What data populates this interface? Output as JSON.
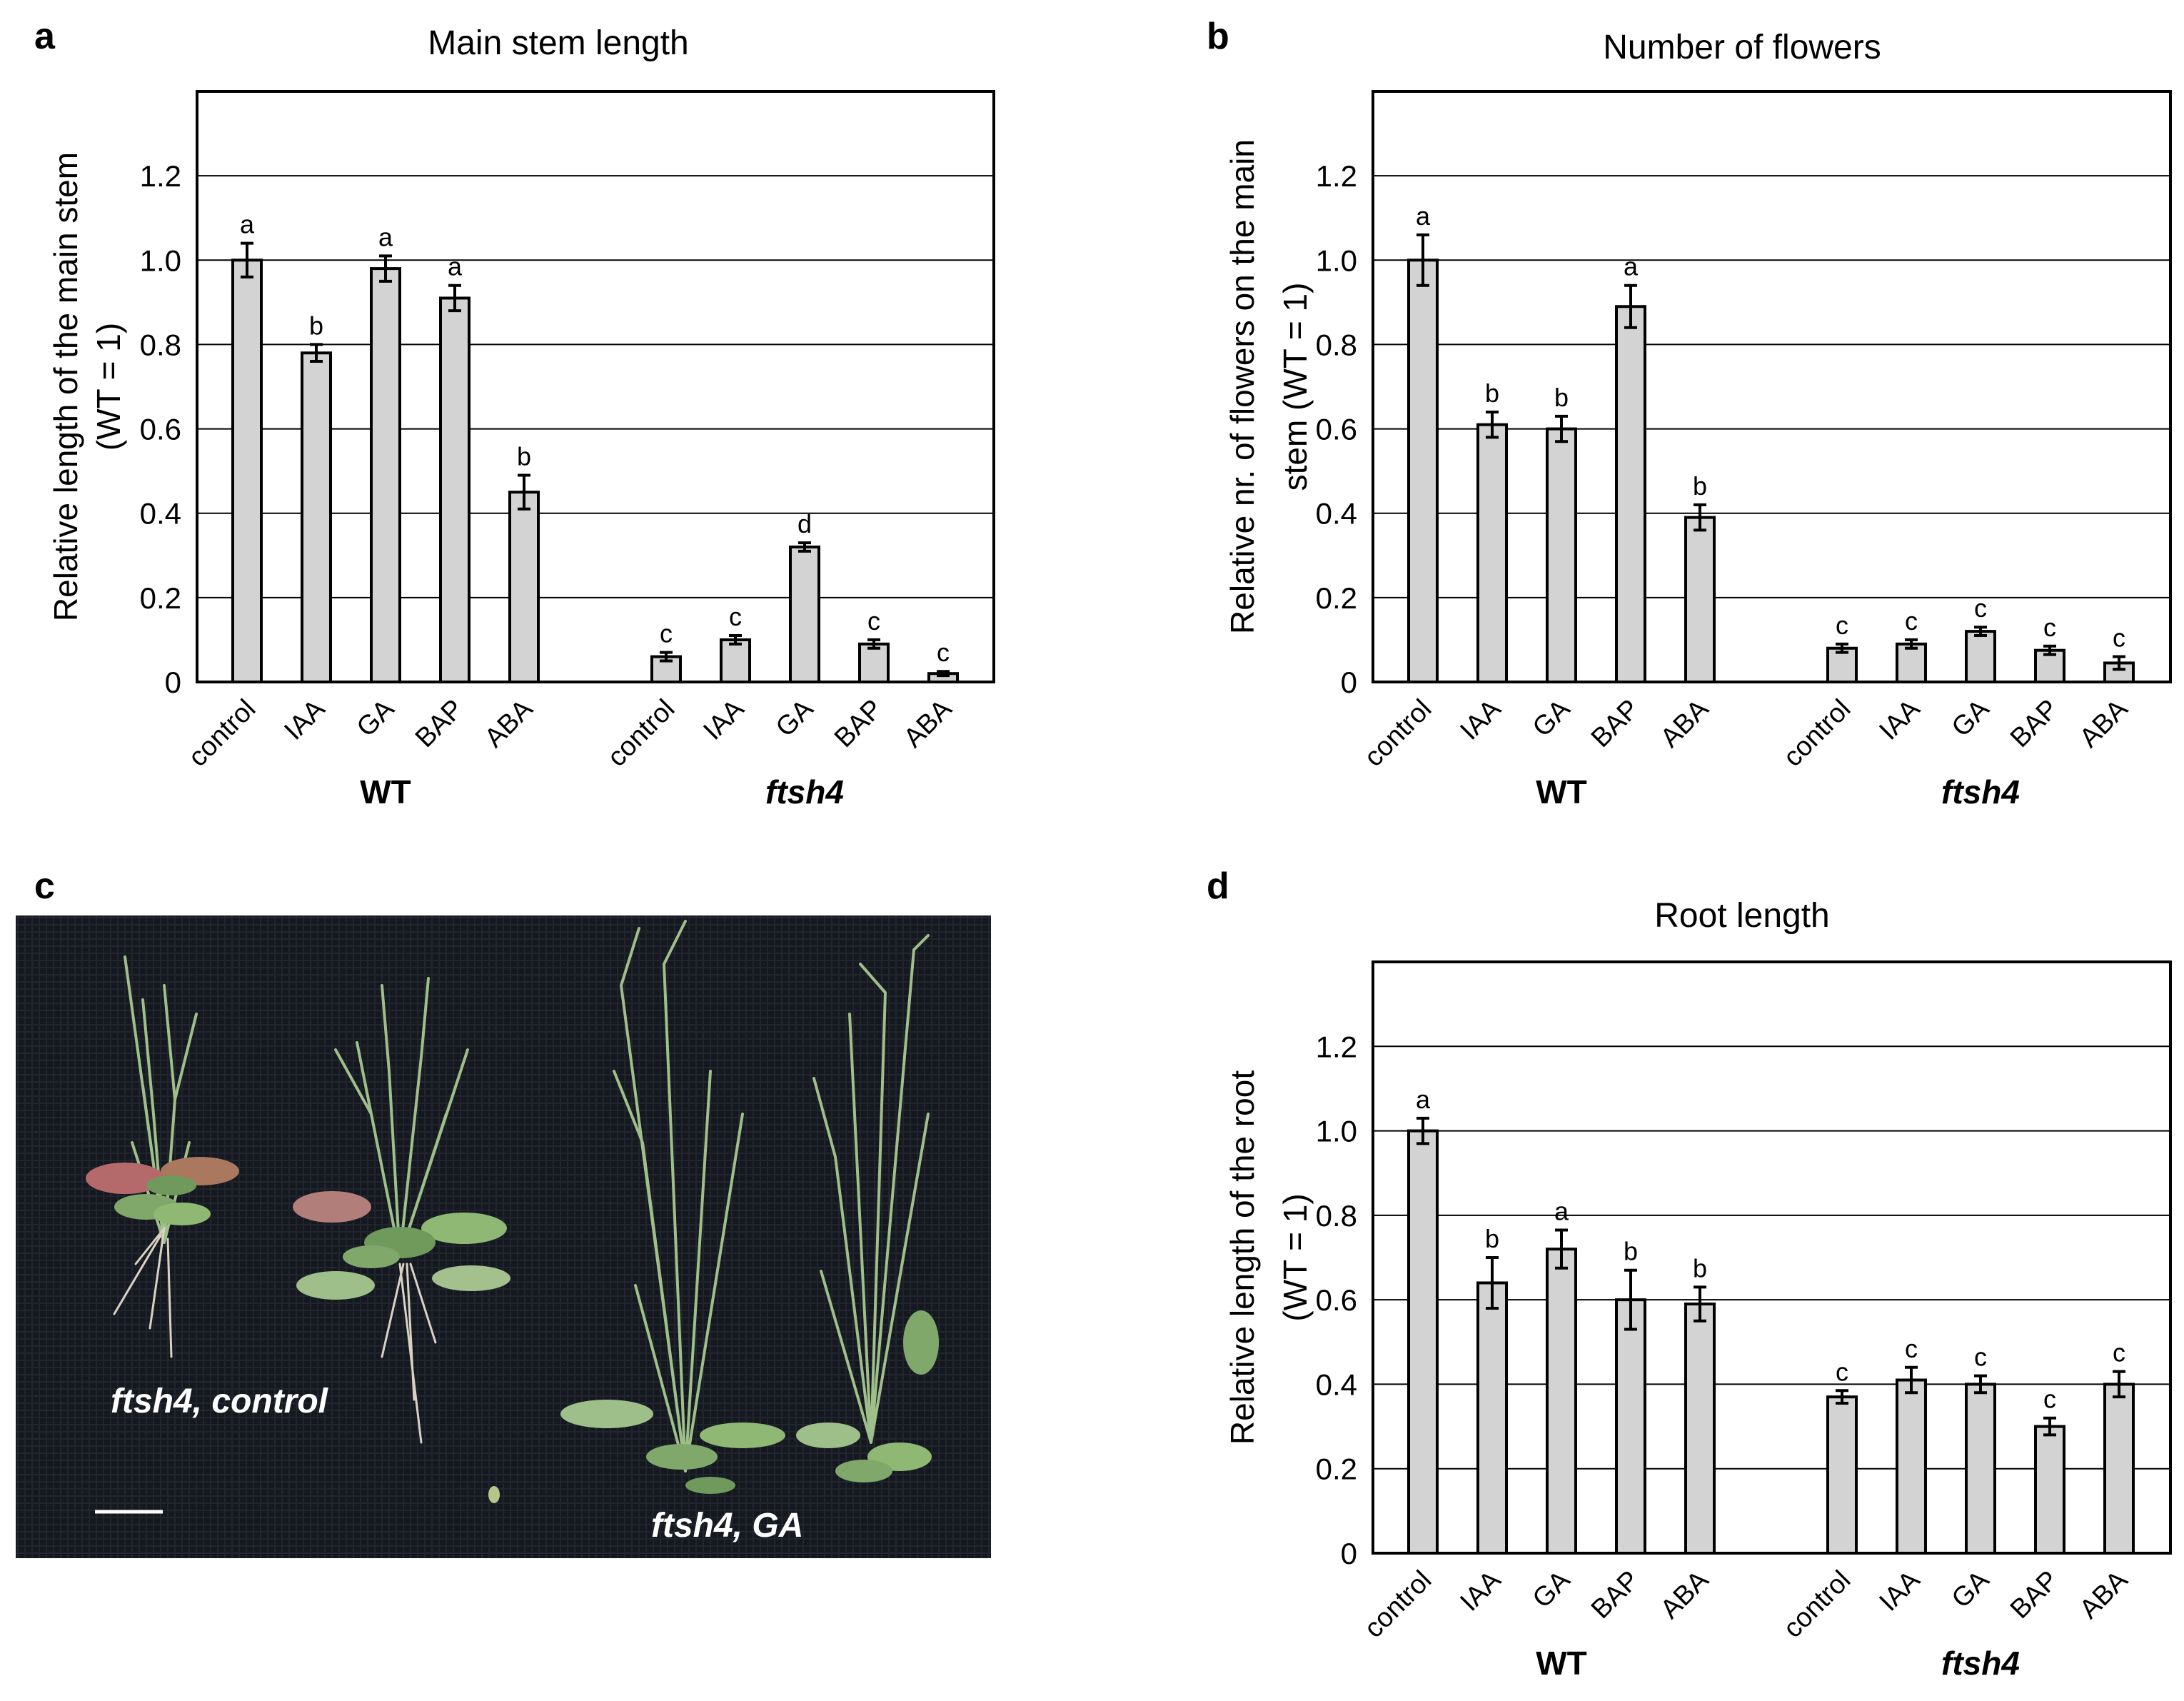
{
  "panels": {
    "a": "a",
    "b": "b",
    "c": "c",
    "d": "d"
  },
  "photo": {
    "label_left": "ftsh4, control",
    "label_right": "ftsh4, GA"
  },
  "colors": {
    "bar_fill": "#d3d3d3",
    "bar_stroke": "#000000",
    "grid": "#000000",
    "photo_background": "#15181f",
    "plant_green": "#7fa86a"
  },
  "chart_data": [
    {
      "type": "bar",
      "title": "Main stem length",
      "ylabel_lines": [
        "Relative length of the main stem",
        "(WT = 1)"
      ],
      "ylim": [
        0,
        1.4
      ],
      "yticks": [
        "0",
        "0.2",
        "0.4",
        "0.6",
        "0.8",
        "1.0",
        "1.2"
      ],
      "grid": true,
      "categories": [
        "control",
        "IAA",
        "GA",
        "BAP",
        "ABA",
        "control",
        "IAA",
        "GA",
        "BAP",
        "ABA"
      ],
      "groups": [
        {
          "name": "WT",
          "italic": false
        },
        {
          "name": "ftsh4",
          "italic": true
        }
      ],
      "values": [
        1.0,
        0.78,
        0.98,
        0.91,
        0.45,
        0.06,
        0.1,
        0.32,
        0.09,
        0.02
      ],
      "errors": [
        0.04,
        0.02,
        0.03,
        0.03,
        0.04,
        0.01,
        0.01,
        0.01,
        0.01,
        0.005
      ],
      "letters": [
        "a",
        "b",
        "a",
        "a",
        "b",
        "c",
        "c",
        "d",
        "c",
        "c"
      ]
    },
    {
      "type": "bar",
      "title": "Number of flowers",
      "ylabel_lines": [
        "Relative nr. of flowers on the main",
        "stem (WT = 1)"
      ],
      "ylim": [
        0,
        1.4
      ],
      "yticks": [
        "0",
        "0.2",
        "0.4",
        "0.6",
        "0.8",
        "1.0",
        "1.2"
      ],
      "grid": true,
      "categories": [
        "control",
        "IAA",
        "GA",
        "BAP",
        "ABA",
        "control",
        "IAA",
        "GA",
        "BAP",
        "ABA"
      ],
      "groups": [
        {
          "name": "WT",
          "italic": false
        },
        {
          "name": "ftsh4",
          "italic": true
        }
      ],
      "values": [
        1.0,
        0.61,
        0.6,
        0.89,
        0.39,
        0.08,
        0.09,
        0.12,
        0.075,
        0.045
      ],
      "errors": [
        0.06,
        0.03,
        0.03,
        0.05,
        0.03,
        0.01,
        0.01,
        0.01,
        0.01,
        0.015
      ],
      "letters": [
        "a",
        "b",
        "b",
        "a",
        "b",
        "c",
        "c",
        "c",
        "c",
        "c"
      ]
    },
    {
      "type": "bar",
      "title": "Root length",
      "ylabel_lines": [
        "Relative length of the root",
        "(WT = 1)"
      ],
      "ylim": [
        0,
        1.4
      ],
      "yticks": [
        "0",
        "0.2",
        "0.4",
        "0.6",
        "0.8",
        "1.0",
        "1.2"
      ],
      "grid": true,
      "categories": [
        "control",
        "IAA",
        "GA",
        "BAP",
        "ABA",
        "control",
        "IAA",
        "GA",
        "BAP",
        "ABA"
      ],
      "groups": [
        {
          "name": "WT",
          "italic": false
        },
        {
          "name": "ftsh4",
          "italic": true
        }
      ],
      "values": [
        1.0,
        0.64,
        0.72,
        0.6,
        0.59,
        0.37,
        0.41,
        0.4,
        0.3,
        0.4
      ],
      "errors": [
        0.03,
        0.06,
        0.045,
        0.07,
        0.04,
        0.015,
        0.03,
        0.02,
        0.02,
        0.03
      ],
      "letters": [
        "a",
        "b",
        "a",
        "b",
        "b",
        "c",
        "c",
        "c",
        "c",
        "c"
      ]
    }
  ]
}
